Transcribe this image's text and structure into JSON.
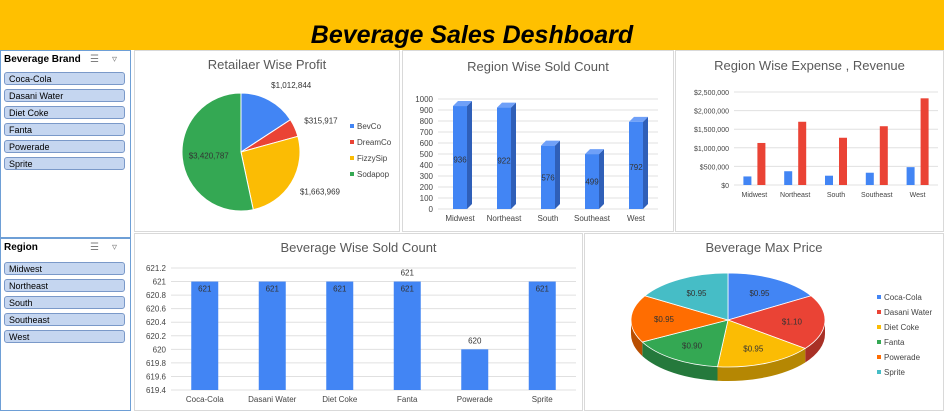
{
  "dashboard": {
    "title": "Beverage Sales Deshboard"
  },
  "slicers": {
    "brand": {
      "title": "Beverage Brand",
      "items": [
        "Coca-Cola",
        "Dasani Water",
        "Diet Coke",
        "Fanta",
        "Powerade",
        "Sprite"
      ]
    },
    "region": {
      "title": "Region",
      "items": [
        "Midwest",
        "Northeast",
        "South",
        "Southeast",
        "West"
      ]
    }
  },
  "colors": {
    "header": "#ffc000",
    "bar_blue": "#4285f4",
    "bar_red": "#ea4335",
    "slicer_item": "#c5d6f0"
  },
  "chart_data": [
    {
      "id": "retailer_profit",
      "type": "pie",
      "title": "Retailaer Wise Profit",
      "labels": [
        "BevCo",
        "DreamCo",
        "FizzySip",
        "Sodapop"
      ],
      "values": [
        1012844,
        315917,
        1663969,
        3420787
      ],
      "data_labels": [
        "$1,012,844",
        "$315,917",
        "$1,663,969",
        "$3,420,787"
      ],
      "colors": [
        "#4285f4",
        "#ea4335",
        "#fbbc04",
        "#34a853"
      ],
      "legend": "right"
    },
    {
      "id": "region_sold_count",
      "type": "bar",
      "title": "Region  Wise Sold Count",
      "categories": [
        "Midwest",
        "Northeast",
        "South",
        "Southeast",
        "West"
      ],
      "values": [
        936,
        922,
        576,
        499,
        792
      ],
      "ylim": [
        0,
        1000
      ],
      "yticks": [
        "0",
        "100",
        "200",
        "300",
        "400",
        "500",
        "600",
        "700",
        "800",
        "900",
        "1000"
      ],
      "grid": true
    },
    {
      "id": "region_expense_revenue",
      "type": "bar",
      "title": "Region Wise Expense , Revenue",
      "categories": [
        "Midwest",
        "Northeast",
        "South",
        "Southeast",
        "West"
      ],
      "series": [
        {
          "values": [
            230000,
            370000,
            250000,
            330000,
            480000
          ],
          "color": "#4285f4"
        },
        {
          "values": [
            1130000,
            1700000,
            1270000,
            1580000,
            2330000
          ],
          "color": "#ea4335"
        }
      ],
      "ylim": [
        0,
        2500000
      ],
      "yticks": [
        "$0",
        "$500,000",
        "$1,000,000",
        "$1,500,000",
        "$2,000,000",
        "$2,500,000"
      ],
      "grid": true
    },
    {
      "id": "beverage_sold_count",
      "type": "bar",
      "title": "Beverage Wise Sold Count",
      "categories": [
        "Coca-Cola",
        "Dasani Water",
        "Diet Coke",
        "Fanta",
        "Powerade",
        "Sprite"
      ],
      "values": [
        621,
        621,
        621,
        621,
        620,
        621
      ],
      "data_labels": [
        "621",
        "621",
        "621",
        "621",
        "620",
        "621"
      ],
      "ylim": [
        619.4,
        621.2
      ],
      "yticks": [
        "619.4",
        "619.6",
        "619.8",
        "620",
        "620.2",
        "620.4",
        "620.6",
        "620.8",
        "621",
        "621.2"
      ],
      "grid": true
    },
    {
      "id": "beverage_max_price",
      "type": "pie",
      "title": "Beverage Max Price",
      "labels": [
        "Coca-Cola",
        "Dasani Water",
        "Diet Coke",
        "Fanta",
        "Powerade",
        "Sprite"
      ],
      "values": [
        0.95,
        1.1,
        0.95,
        0.9,
        0.95,
        0.95
      ],
      "data_labels": [
        "$0.95",
        "$1.10",
        "$0.95",
        "$0.90",
        "$0.95",
        "$0.95"
      ],
      "colors": [
        "#4285f4",
        "#ea4335",
        "#fbbc04",
        "#34a853",
        "#ff6d01",
        "#46bdc6"
      ],
      "legend": "right"
    }
  ]
}
